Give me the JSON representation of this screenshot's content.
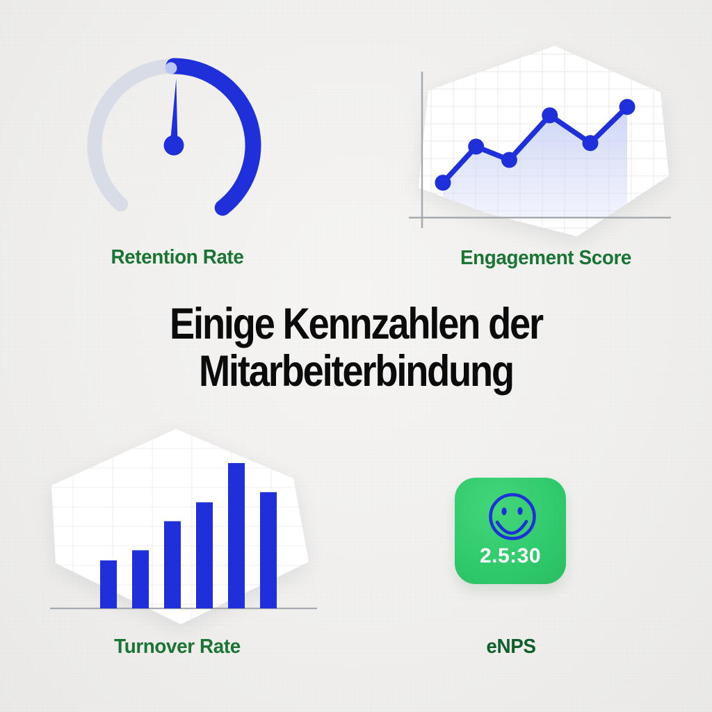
{
  "page": {
    "title_line1": "Einige Kennzahlen der",
    "title_line2": "Mitarbeiterbindung"
  },
  "colors": {
    "background": "#f0efed",
    "primary_blue": "#1f30da",
    "gauge_track_gray": "#d8dce6",
    "gauge_top_dot": "#b9c6f2",
    "label_green": "#1a7434",
    "enps_label_green": "#0f5f2a",
    "enps_badge_green": "#2fc96b",
    "badge_value_white": "#ffffff",
    "area_fill_lavender": "#ccd4f5",
    "axis_gray": "#a6a9ae",
    "grid_faint": "#d8cfc9",
    "title_black": "#0b0b0b",
    "hexagon_white": "#ffffff"
  },
  "cards": {
    "retention": {
      "label": "Retention Rate",
      "icon": "gauge-icon"
    },
    "engagement": {
      "label": "Engagement Score",
      "icon": "line-chart-icon"
    },
    "turnover": {
      "label": "Turnover Rate",
      "icon": "bar-chart-icon"
    },
    "enps": {
      "label": "eNPS",
      "icon": "smiley-badge-icon",
      "badge_value": "2.5:30"
    }
  },
  "chart_data": [
    {
      "id": "retention-gauge",
      "type": "gauge",
      "title": "Retention Rate",
      "arc_start_deg": -138,
      "arc_split_deg": 0,
      "arc_end_deg": 142,
      "needle_deg": 2,
      "value_percent_filled": 51,
      "note": "blue arc fills from top (12 o'clock) clockwise to lower right; gray track on left; needle points straight up"
    },
    {
      "id": "engagement-line",
      "type": "line",
      "title": "Engagement Score",
      "x_percent": [
        0,
        18,
        36,
        58,
        80,
        100
      ],
      "y_percent": [
        29,
        59,
        48,
        85,
        62,
        92
      ],
      "area_fill": true,
      "grid": true,
      "axes": "left-bottom",
      "legend": "none"
    },
    {
      "id": "turnover-bar",
      "type": "bar",
      "title": "Turnover Rate",
      "values_percent": [
        33,
        40,
        60,
        73,
        100,
        80
      ],
      "grid": true,
      "baseline": true,
      "legend": "none"
    }
  ]
}
